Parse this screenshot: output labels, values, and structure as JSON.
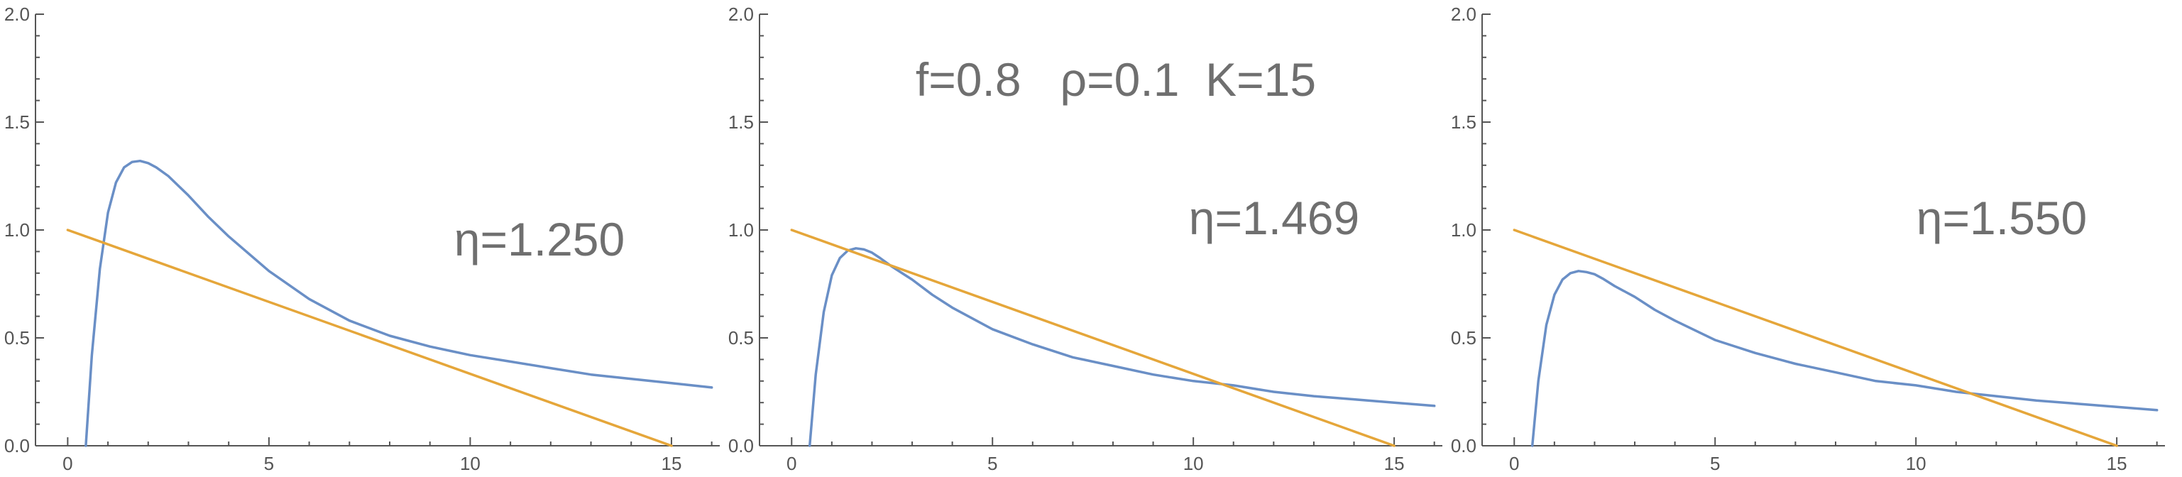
{
  "chart_data": [
    {
      "type": "line",
      "xlim": [
        -0.8,
        16.2
      ],
      "ylim": [
        0,
        2
      ],
      "x_ticks": [
        0,
        5,
        10,
        15
      ],
      "y_ticks": [
        0.0,
        0.5,
        1.0,
        1.5,
        2.0
      ],
      "x_tick_labels": [
        "0",
        "5",
        "10",
        "15"
      ],
      "y_tick_labels": [
        "0.0",
        "0.5",
        "1.0",
        "1.5",
        "2.0"
      ],
      "grid": false,
      "annotations": [
        "η=1.250"
      ],
      "colors": {
        "curve": "#6a8fc6",
        "line": "#e5a63a",
        "axes": "#555555",
        "text": "#6f6f6f"
      },
      "series": [
        {
          "x": [
            0.45,
            0.6,
            0.8,
            1.0,
            1.2,
            1.4,
            1.6,
            1.8,
            2.0,
            2.2,
            2.5,
            3.0,
            3.5,
            4.0,
            5.0,
            6.0,
            7.0,
            8.0,
            9.0,
            10.0,
            11.0,
            12.0,
            13.0,
            14.0,
            15.0,
            16.0
          ],
          "y": [
            0.0,
            0.42,
            0.82,
            1.08,
            1.22,
            1.29,
            1.315,
            1.32,
            1.31,
            1.29,
            1.25,
            1.16,
            1.06,
            0.97,
            0.81,
            0.68,
            0.58,
            0.51,
            0.46,
            0.42,
            0.39,
            0.36,
            0.33,
            0.31,
            0.29,
            0.27
          ]
        },
        {
          "x": [
            0,
            15
          ],
          "y": [
            1.0,
            0.0
          ]
        }
      ]
    },
    {
      "type": "line",
      "xlim": [
        -0.8,
        16.2
      ],
      "ylim": [
        0,
        2
      ],
      "x_ticks": [
        0,
        5,
        10,
        15
      ],
      "y_ticks": [
        0.0,
        0.5,
        1.0,
        1.5,
        2.0
      ],
      "x_tick_labels": [
        "0",
        "5",
        "10",
        "15"
      ],
      "y_tick_labels": [
        "0.0",
        "0.5",
        "1.0",
        "1.5",
        "2.0"
      ],
      "grid": false,
      "annotations": [
        "f=0.8   ρ=0.1  K=15",
        "η=1.469"
      ],
      "colors": {
        "curve": "#6a8fc6",
        "line": "#e5a63a",
        "axes": "#555555",
        "text": "#6f6f6f"
      },
      "series": [
        {
          "x": [
            0.45,
            0.6,
            0.8,
            1.0,
            1.2,
            1.4,
            1.6,
            1.8,
            2.0,
            2.2,
            2.5,
            3.0,
            3.5,
            4.0,
            5.0,
            6.0,
            7.0,
            8.0,
            9.0,
            10.0,
            11.0,
            12.0,
            13.0,
            14.0,
            15.0,
            16.0
          ],
          "y": [
            0.0,
            0.33,
            0.62,
            0.79,
            0.87,
            0.905,
            0.915,
            0.91,
            0.895,
            0.87,
            0.83,
            0.77,
            0.7,
            0.64,
            0.54,
            0.47,
            0.41,
            0.37,
            0.33,
            0.3,
            0.28,
            0.25,
            0.23,
            0.215,
            0.2,
            0.185
          ]
        },
        {
          "x": [
            0,
            15
          ],
          "y": [
            1.0,
            0.0
          ]
        }
      ]
    },
    {
      "type": "line",
      "xlim": [
        -0.8,
        16.2
      ],
      "ylim": [
        0,
        2
      ],
      "x_ticks": [
        0,
        5,
        10,
        15
      ],
      "y_ticks": [
        0.0,
        0.5,
        1.0,
        1.5,
        2.0
      ],
      "x_tick_labels": [
        "0",
        "5",
        "10",
        "15"
      ],
      "y_tick_labels": [
        "0.0",
        "0.5",
        "1.0",
        "1.5",
        "2.0"
      ],
      "grid": false,
      "annotations": [
        "η=1.550"
      ],
      "colors": {
        "curve": "#6a8fc6",
        "line": "#e5a63a",
        "axes": "#555555",
        "text": "#6f6f6f"
      },
      "series": [
        {
          "x": [
            0.45,
            0.6,
            0.8,
            1.0,
            1.2,
            1.4,
            1.6,
            1.8,
            2.0,
            2.2,
            2.5,
            3.0,
            3.5,
            4.0,
            5.0,
            6.0,
            7.0,
            8.0,
            9.0,
            10.0,
            11.0,
            12.0,
            13.0,
            14.0,
            15.0,
            16.0
          ],
          "y": [
            0.0,
            0.3,
            0.56,
            0.7,
            0.77,
            0.8,
            0.81,
            0.805,
            0.795,
            0.775,
            0.74,
            0.69,
            0.63,
            0.58,
            0.49,
            0.43,
            0.38,
            0.34,
            0.3,
            0.28,
            0.25,
            0.23,
            0.21,
            0.195,
            0.18,
            0.165
          ]
        },
        {
          "x": [
            0,
            15
          ],
          "y": [
            1.0,
            0.0
          ]
        }
      ]
    }
  ]
}
